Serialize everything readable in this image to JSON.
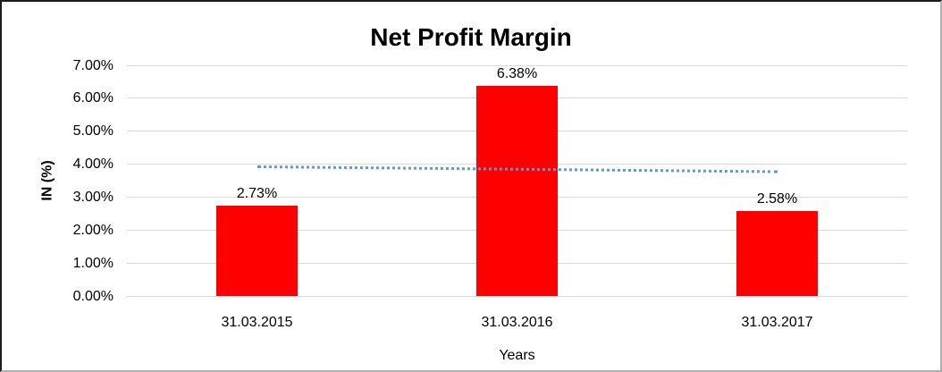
{
  "chart_data": {
    "type": "bar",
    "title": "Net Profit Margin",
    "xlabel": "Years",
    "ylabel": "IN (%)",
    "categories": [
      "31.03.2015",
      "31.03.2016",
      "31.03.2017"
    ],
    "values": [
      2.73,
      6.38,
      2.58
    ],
    "value_labels": [
      "2.73%",
      "6.38%",
      "2.58%"
    ],
    "ytick_labels": [
      "0.00%",
      "1.00%",
      "2.00%",
      "3.00%",
      "4.00%",
      "5.00%",
      "6.00%",
      "7.00%"
    ],
    "ylim": [
      0,
      7
    ],
    "ytick_step": 1,
    "grid": true,
    "legend": "none",
    "bar_color": "#ff0000",
    "gridline_color": "#d9d9d9",
    "trendline": {
      "type": "linear",
      "style": "dotted",
      "color": "#5b9bd5",
      "start_value": 3.97,
      "end_value": 3.82
    }
  }
}
